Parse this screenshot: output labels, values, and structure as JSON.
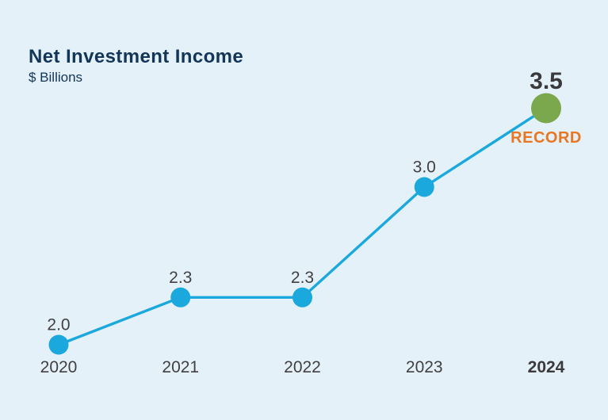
{
  "header": {
    "title": "Net Investment Income",
    "subtitle": "$ Billions"
  },
  "chart_data": {
    "type": "line",
    "title": "Net Investment Income",
    "ylabel": "$ Billions",
    "categories": [
      "2020",
      "2021",
      "2022",
      "2023",
      "2024"
    ],
    "values": [
      2.0,
      2.3,
      2.3,
      3.0,
      3.5
    ],
    "value_labels": [
      "2.0",
      "2.3",
      "2.3",
      "3.0",
      "3.5"
    ],
    "ylim": [
      2.0,
      3.5
    ],
    "grid": false,
    "legend": false,
    "highlight": {
      "index": 4,
      "category": "2024",
      "value": 3.5,
      "label": "RECORD",
      "point_color": "#7BA84D",
      "label_color": "#E87623"
    },
    "colors": {
      "line": "#1BA8DD",
      "point": "#1BA8DD",
      "value_label": "#414042",
      "axis_label": "#414042",
      "highlight_text": "#3A3A3C"
    }
  },
  "colors": {
    "background": "#E4F1F8",
    "navy": "#123558"
  }
}
